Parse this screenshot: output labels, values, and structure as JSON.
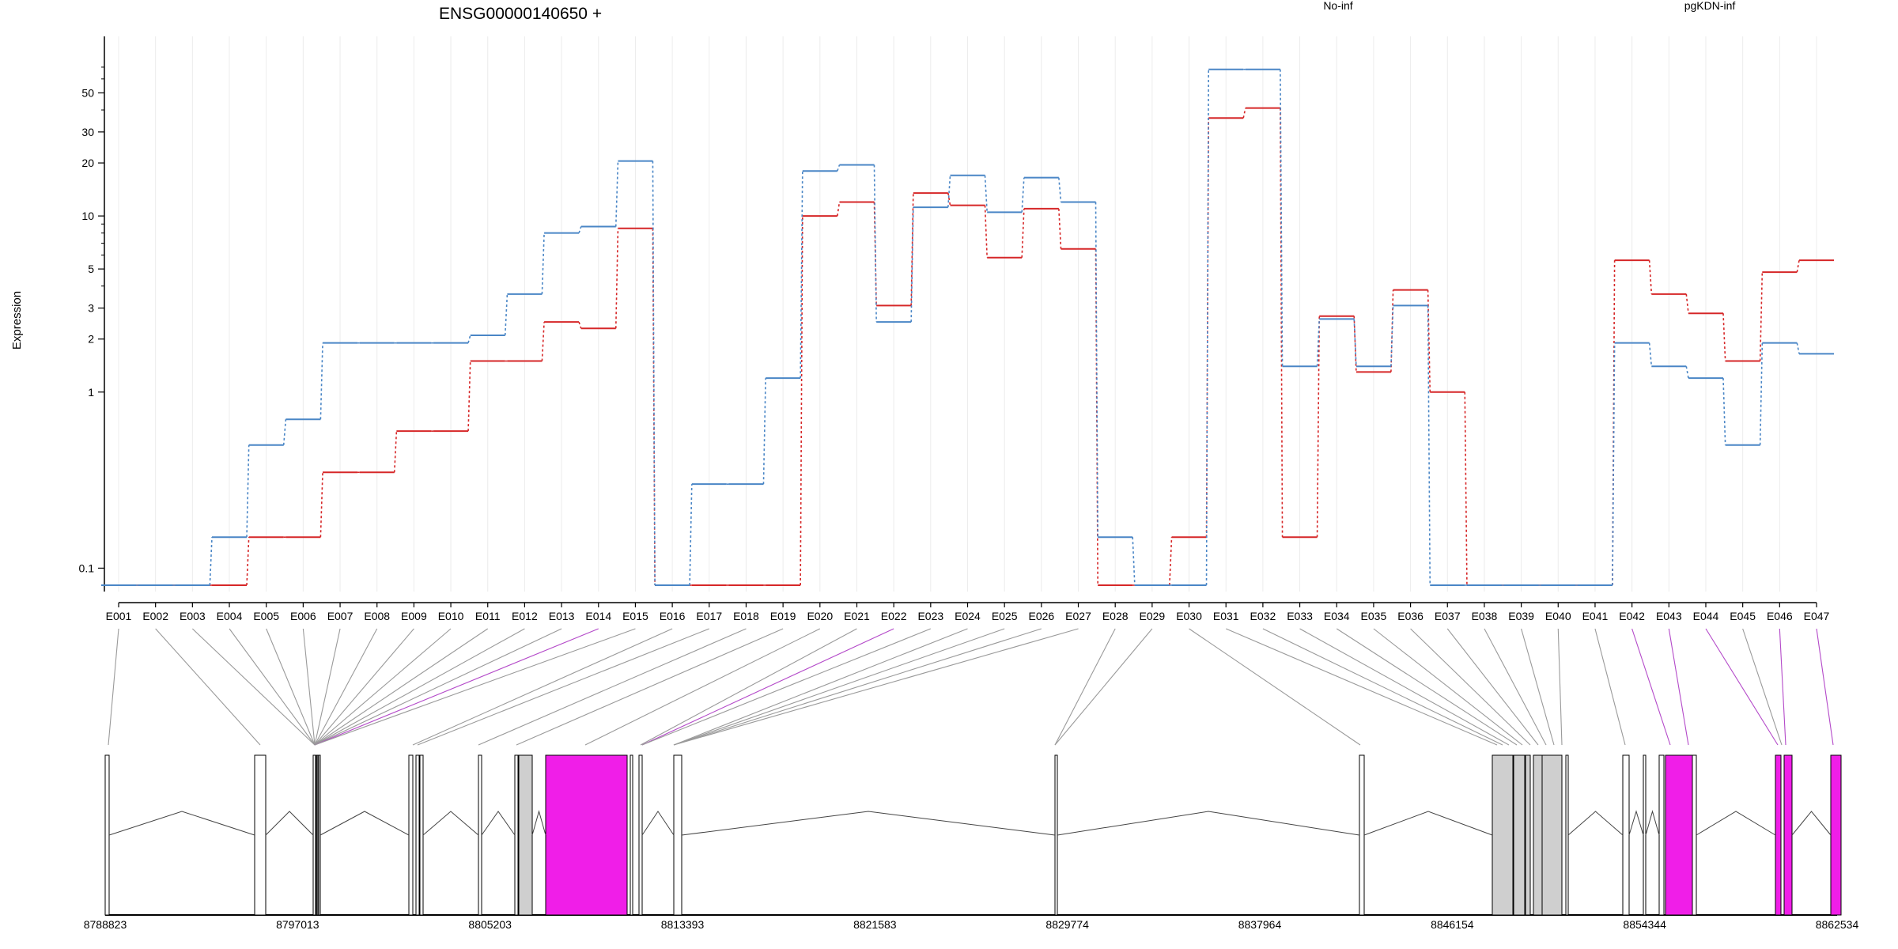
{
  "chart_data": {
    "type": "line",
    "title": "ENSG00000140650 +",
    "ylabel": "Expression",
    "xlabel": "",
    "y_scale": "log",
    "y_ticks": [
      0.1,
      1,
      2,
      3,
      5,
      10,
      20,
      30,
      50
    ],
    "grid": "vertical",
    "legend_placement": "top",
    "categories": [
      "E001",
      "E002",
      "E003",
      "E004",
      "E005",
      "E006",
      "E007",
      "E008",
      "E009",
      "E010",
      "E011",
      "E012",
      "E013",
      "E014",
      "E015",
      "E016",
      "E017",
      "E018",
      "E019",
      "E020",
      "E021",
      "E022",
      "E023",
      "E024",
      "E025",
      "E026",
      "E027",
      "E028",
      "E029",
      "E030",
      "E031",
      "E032",
      "E033",
      "E034",
      "E035",
      "E036",
      "E037",
      "E038",
      "E039",
      "E040",
      "E041",
      "E042",
      "E043",
      "E044",
      "E045",
      "E046",
      "E047"
    ],
    "series": [
      {
        "name": "No-inf",
        "color": "#d62728",
        "values": [
          0.08,
          0.08,
          0.08,
          0.08,
          0.15,
          0.15,
          0.35,
          0.35,
          0.6,
          0.6,
          1.5,
          1.5,
          2.5,
          2.3,
          8.5,
          0.08,
          0.08,
          0.08,
          0.08,
          10,
          12,
          3.1,
          13.5,
          11.5,
          5.8,
          11,
          6.5,
          0.08,
          0.08,
          0.15,
          36,
          41,
          0.15,
          2.7,
          1.3,
          3.8,
          1.0,
          0.08,
          0.08,
          0.08,
          0.08,
          5.6,
          3.6,
          2.8,
          1.5,
          4.8,
          5.6
        ]
      },
      {
        "name": "pgKDN-inf",
        "color": "#4a86c6",
        "values": [
          0.08,
          0.08,
          0.08,
          0.15,
          0.5,
          0.7,
          1.9,
          1.9,
          1.9,
          1.9,
          2.1,
          3.6,
          8.0,
          8.7,
          20.5,
          0.08,
          0.3,
          0.3,
          1.2,
          18,
          19.5,
          2.5,
          11.2,
          17,
          10.5,
          16.5,
          12,
          0.15,
          0.08,
          0.08,
          68,
          68,
          1.4,
          2.6,
          1.4,
          3.1,
          0.08,
          0.08,
          0.08,
          0.08,
          0.08,
          1.9,
          1.4,
          1.2,
          0.5,
          1.9,
          1.65
        ]
      }
    ],
    "gene_track": {
      "coordinate_ticks": [
        "8788823",
        "8797013",
        "8805203",
        "8813393",
        "8821583",
        "8829774",
        "8837964",
        "8846154",
        "8854344",
        "8862534"
      ],
      "highlight_color": "#f01ee8",
      "exon_color": "#ffffff",
      "expressed_exon_color": "#cfcfcf",
      "highlighted_exons": [
        "E014",
        "E022",
        "E042",
        "E043",
        "E044",
        "E046",
        "E047"
      ]
    }
  }
}
